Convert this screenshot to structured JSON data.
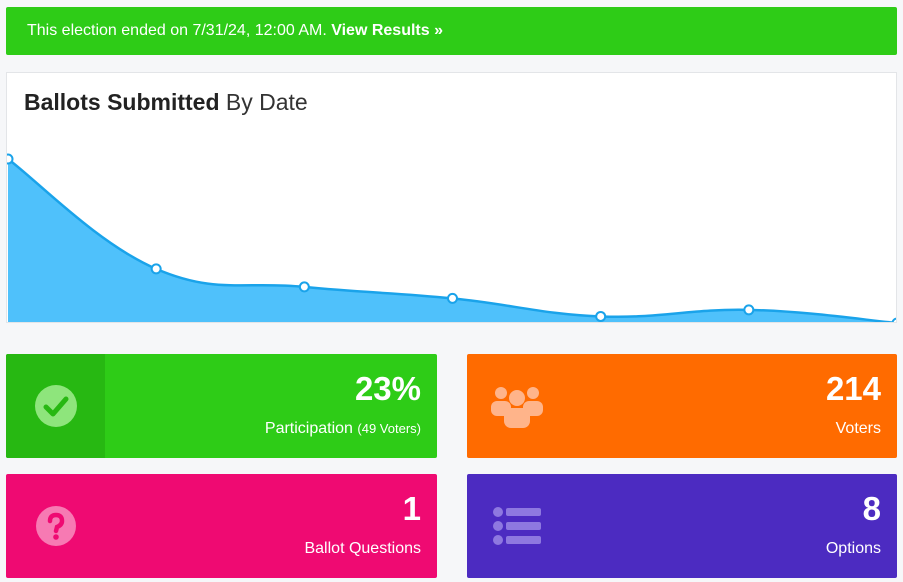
{
  "banner": {
    "text": "This election ended on 7/31/24, 12:00 AM.",
    "link": "View Results »"
  },
  "chart": {
    "title_bold": "Ballots Submitted",
    "title_light": "By Date"
  },
  "chart_data": {
    "type": "area",
    "values": [
      100,
      33,
      22,
      15,
      4,
      8,
      0
    ],
    "ylim": [
      0,
      100
    ],
    "grid": false,
    "legend": "none",
    "color": "#4fc1fb",
    "line_color": "#1aa3ea"
  },
  "cards": {
    "participation": {
      "value": "23%",
      "label": "Participation",
      "sub": "(49 Voters)"
    },
    "voters": {
      "value": "214",
      "label": "Voters"
    },
    "questions": {
      "value": "1",
      "label": "Ballot Questions"
    },
    "options": {
      "value": "8",
      "label": "Options"
    }
  },
  "colors": {
    "green": "#2ecc17",
    "orange": "#ff6b00",
    "pink": "#ef0a72",
    "purple": "#4c2bc1"
  }
}
